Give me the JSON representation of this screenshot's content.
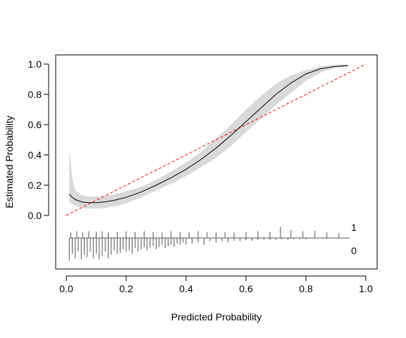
{
  "chart_data": {
    "type": "line",
    "title": "",
    "xlabel": "Predicted Probability",
    "ylabel": "Estimated Probability",
    "xlim": [
      0.0,
      1.0
    ],
    "ylim": [
      0.0,
      1.0
    ],
    "x_ticks": [
      "0.0",
      "0.2",
      "0.4",
      "0.6",
      "0.8",
      "1.0"
    ],
    "y_ticks": [
      "0.0",
      "0.2",
      "0.4",
      "0.6",
      "0.8",
      "1.0"
    ],
    "grid": false,
    "legend": "none",
    "colors": {
      "curve": "#000000",
      "band": "#d9d9d9",
      "reference": "#ff0000",
      "rug": "#555555"
    },
    "series": [
      {
        "kind": "calibration-curve",
        "x": [
          0.01,
          0.02,
          0.03,
          0.05,
          0.07,
          0.1,
          0.13,
          0.16,
          0.2,
          0.25,
          0.3,
          0.35,
          0.4,
          0.45,
          0.5,
          0.55,
          0.6,
          0.65,
          0.7,
          0.75,
          0.8,
          0.85,
          0.9,
          0.94
        ],
        "y": [
          0.14,
          0.12,
          0.105,
          0.09,
          0.085,
          0.085,
          0.09,
          0.1,
          0.12,
          0.155,
          0.2,
          0.25,
          0.305,
          0.37,
          0.445,
          0.53,
          0.62,
          0.71,
          0.8,
          0.875,
          0.935,
          0.97,
          0.985,
          0.99
        ]
      },
      {
        "kind": "confidence-band",
        "x": [
          0.01,
          0.02,
          0.03,
          0.05,
          0.07,
          0.1,
          0.13,
          0.16,
          0.2,
          0.25,
          0.3,
          0.35,
          0.4,
          0.45,
          0.5,
          0.55,
          0.6,
          0.65,
          0.7,
          0.75,
          0.8,
          0.85,
          0.9,
          0.94
        ],
        "upper": [
          0.45,
          0.25,
          0.165,
          0.135,
          0.125,
          0.125,
          0.13,
          0.14,
          0.16,
          0.19,
          0.235,
          0.29,
          0.35,
          0.42,
          0.51,
          0.6,
          0.7,
          0.79,
          0.87,
          0.925,
          0.96,
          0.985,
          0.995,
          1.0
        ],
        "lower": [
          0.09,
          0.075,
          0.065,
          0.05,
          0.045,
          0.045,
          0.05,
          0.06,
          0.08,
          0.12,
          0.165,
          0.21,
          0.26,
          0.32,
          0.38,
          0.46,
          0.55,
          0.64,
          0.73,
          0.81,
          0.89,
          0.945,
          0.975,
          0.98
        ]
      },
      {
        "kind": "reference-line",
        "x": [
          0.0,
          1.0
        ],
        "y": [
          0.0,
          1.0
        ]
      }
    ],
    "rug": {
      "labels": [
        "1",
        "0"
      ],
      "events": [
        0.015,
        0.035,
        0.055,
        0.075,
        0.1,
        0.12,
        0.14,
        0.17,
        0.2,
        0.23,
        0.26,
        0.29,
        0.32,
        0.35,
        0.38,
        0.41,
        0.44,
        0.47,
        0.5,
        0.53,
        0.56,
        0.6,
        0.64,
        0.68,
        0.715,
        0.75,
        0.79,
        0.83,
        0.87,
        0.91
      ],
      "event_lengths": [
        0.5,
        0.6,
        0.5,
        0.6,
        0.55,
        0.6,
        0.5,
        0.55,
        0.6,
        0.55,
        0.6,
        0.55,
        0.5,
        0.6,
        0.55,
        0.5,
        0.6,
        0.55,
        0.5,
        0.55,
        0.5,
        0.55,
        0.6,
        0.55,
        1.0,
        0.7,
        0.6,
        0.65,
        0.5,
        0.45
      ],
      "nonevents": [
        0.01,
        0.02,
        0.03,
        0.04,
        0.05,
        0.06,
        0.07,
        0.08,
        0.09,
        0.1,
        0.11,
        0.12,
        0.13,
        0.14,
        0.15,
        0.16,
        0.17,
        0.18,
        0.19,
        0.2,
        0.21,
        0.22,
        0.23,
        0.24,
        0.25,
        0.26,
        0.27,
        0.28,
        0.29,
        0.3,
        0.31,
        0.32,
        0.33,
        0.34,
        0.35,
        0.36,
        0.37,
        0.38,
        0.39,
        0.4,
        0.42,
        0.44,
        0.46,
        0.48,
        0.5,
        0.52,
        0.54,
        0.56,
        0.58,
        0.6,
        0.62,
        0.64,
        0.66,
        0.68,
        0.7,
        0.72,
        0.74,
        0.76,
        0.78,
        0.8
      ],
      "nonevent_lengths": [
        1.0,
        0.7,
        0.9,
        0.6,
        0.95,
        0.75,
        0.85,
        0.6,
        0.9,
        0.7,
        0.95,
        0.8,
        0.6,
        0.9,
        0.75,
        0.55,
        0.7,
        0.65,
        0.5,
        0.6,
        0.55,
        0.7,
        0.45,
        0.6,
        0.5,
        0.4,
        0.55,
        0.45,
        0.35,
        0.5,
        0.4,
        0.3,
        0.45,
        0.35,
        0.3,
        0.4,
        0.25,
        0.3,
        0.2,
        0.3,
        0.25,
        0.2,
        0.3,
        0.15,
        0.2,
        0.15,
        0.2,
        0.12,
        0.15,
        0.1,
        0.12,
        0.1,
        0.08,
        0.1,
        0.08,
        0.06,
        0.08,
        0.06,
        0.05,
        0.06
      ]
    }
  }
}
